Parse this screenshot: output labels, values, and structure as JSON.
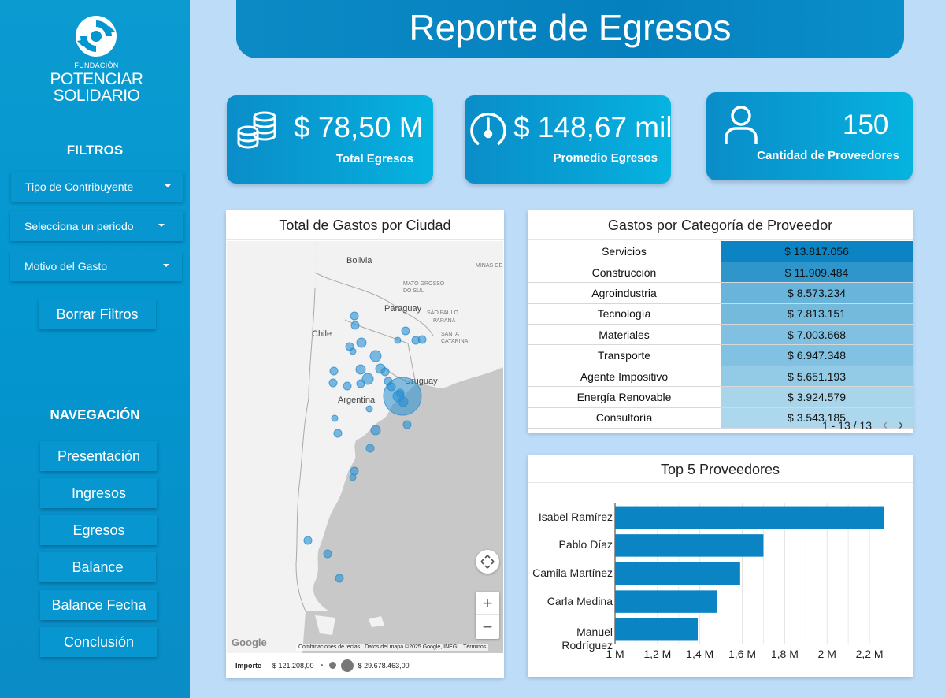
{
  "brand": {
    "small": "FUNDACIÓN",
    "line1": "POTENCIAR",
    "line2": "SOLIDARIO",
    "color": "#0396cf"
  },
  "sidebar": {
    "filters_heading": "FILTROS",
    "filters": [
      {
        "label": "Tipo de Contribuyente"
      },
      {
        "label": "Selecciona un periodo"
      },
      {
        "label": "Motivo del Gasto"
      }
    ],
    "clear_button": "Borrar Filtros",
    "nav_heading": "NAVEGACIÓN",
    "nav": [
      {
        "label": "Presentación"
      },
      {
        "label": "Ingresos"
      },
      {
        "label": "Egresos"
      },
      {
        "label": "Balance"
      },
      {
        "label": "Balance Fecha"
      },
      {
        "label": "Conclusión"
      }
    ]
  },
  "header": {
    "title": "Reporte de Egresos"
  },
  "kpis": {
    "total": {
      "value": "$ 78,50 M",
      "label": "Total Egresos",
      "icon": "coins-icon"
    },
    "avg": {
      "value": "$ 148,67 mil",
      "label": "Promedio Egresos",
      "icon": "gauge-icon"
    },
    "count": {
      "value": "150",
      "label": "Cantidad de Proveedores",
      "icon": "user-icon"
    }
  },
  "map": {
    "title": "Total de Gastos por Ciudad",
    "labels": {
      "bolivia": "Bolivia",
      "paraguay": "Paraguay",
      "chile": "Chile",
      "argentina": "Argentina",
      "uruguay": "Uruguay",
      "mato": "MATO GROSSO\nDO SUL",
      "sao": "SÃO PAULO",
      "parana": "PARANÁ",
      "santa": "SANTA\nCATARINA",
      "minas": "MINAS GE"
    },
    "google": "Google",
    "attribution": {
      "keys": "Combinaciones de teclas",
      "data": "Datos del mapa ©2025 Google, INEGI",
      "terms": "Términos"
    },
    "legend": {
      "title": "Importe",
      "min": "$ 121.208,00",
      "max": "$ 29.678.463,00"
    },
    "point_color": "#2a8fd0"
  },
  "category_table": {
    "title": "Gastos por Categoría de Proveedor",
    "rows": [
      {
        "name": "Servicios",
        "amount": "$ 13.817.056",
        "value": 13817056
      },
      {
        "name": "Construcción",
        "amount": "$ 11.909.484",
        "value": 11909484
      },
      {
        "name": "Agroindustria",
        "amount": "$ 8.573.234",
        "value": 8573234
      },
      {
        "name": "Tecnología",
        "amount": "$ 7.813.151",
        "value": 7813151
      },
      {
        "name": "Materiales",
        "amount": "$ 7.003.668",
        "value": 7003668
      },
      {
        "name": "Transporte",
        "amount": "$ 6.947.348",
        "value": 6947348
      },
      {
        "name": "Agente Impositivo",
        "amount": "$ 5.651.193",
        "value": 5651193
      },
      {
        "name": "Energía Renovable",
        "amount": "$ 3.924.579",
        "value": 3924579
      },
      {
        "name": "Consultoría",
        "amount": "$ 3.543.185",
        "value": 3543185
      }
    ],
    "pager": "1 - 13 / 13"
  },
  "chart_data": {
    "type": "bar",
    "orientation": "horizontal",
    "title": "Top 5 Proveedores",
    "categories": [
      "Isabel Ramírez",
      "Pablo Díaz",
      "Camila Martínez",
      "Carla Medina",
      "Manuel Rodríguez"
    ],
    "values": [
      2270000,
      1700000,
      1590000,
      1480000,
      1390000
    ],
    "xlim": [
      1000000,
      2300000
    ],
    "ticks": [
      1000000,
      1200000,
      1400000,
      1600000,
      1800000,
      2000000,
      2200000
    ],
    "tick_labels": [
      "1 M",
      "1,2 M",
      "1,4 M",
      "1,6 M",
      "1,8 M",
      "2 M",
      "2,2 M"
    ],
    "grid": true,
    "bar_color": "#0a84c2"
  }
}
